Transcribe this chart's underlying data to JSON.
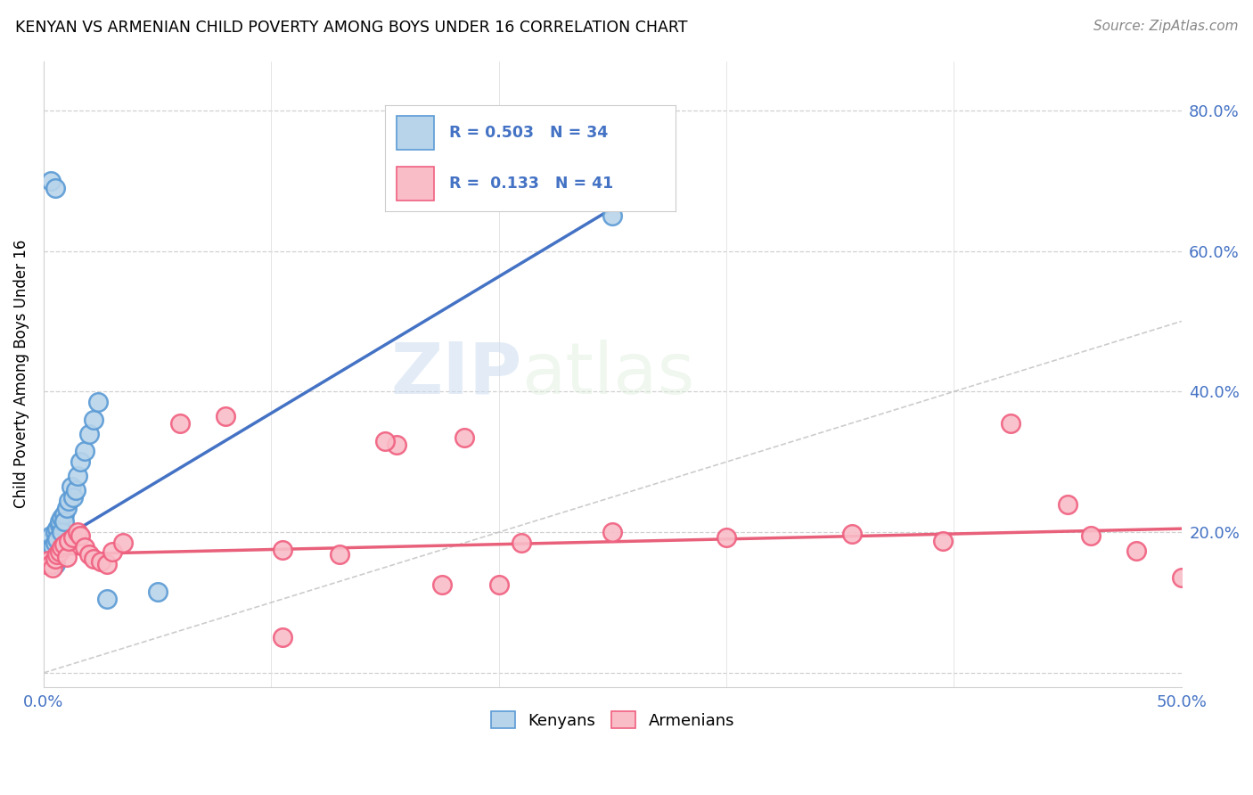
{
  "title": "KENYAN VS ARMENIAN CHILD POVERTY AMONG BOYS UNDER 16 CORRELATION CHART",
  "source": "Source: ZipAtlas.com",
  "ylabel": "Child Poverty Among Boys Under 16",
  "xlim": [
    0.0,
    0.5
  ],
  "ylim": [
    -0.02,
    0.87
  ],
  "yticks": [
    0.0,
    0.2,
    0.4,
    0.6,
    0.8
  ],
  "xticks": [
    0.0,
    0.1,
    0.2,
    0.3,
    0.4,
    0.5
  ],
  "legend_bottom": [
    "Kenyans",
    "Armenians"
  ],
  "kenyan_R": 0.503,
  "kenyan_N": 34,
  "armenian_R": 0.133,
  "armenian_N": 41,
  "kenyan_color": "#b8d4ea",
  "armenian_color": "#f9bdc8",
  "kenyan_edge": "#5b9bd5",
  "armenian_edge": "#f06080",
  "line_kenyan": "#4472c4",
  "line_armenian": "#e8607a",
  "watermark_zip": "ZIP",
  "watermark_atlas": "atlas",
  "kenyan_x": [
    0.001,
    0.002,
    0.002,
    0.003,
    0.003,
    0.004,
    0.004,
    0.005,
    0.005,
    0.005,
    0.006,
    0.006,
    0.007,
    0.007,
    0.008,
    0.008,
    0.009,
    0.009,
    0.01,
    0.011,
    0.012,
    0.013,
    0.014,
    0.015,
    0.016,
    0.018,
    0.02,
    0.022,
    0.024,
    0.028,
    0.003,
    0.005,
    0.25,
    0.05
  ],
  "kenyan_y": [
    0.175,
    0.185,
    0.165,
    0.195,
    0.17,
    0.18,
    0.16,
    0.2,
    0.185,
    0.155,
    0.205,
    0.19,
    0.21,
    0.215,
    0.22,
    0.2,
    0.225,
    0.215,
    0.235,
    0.245,
    0.265,
    0.25,
    0.26,
    0.28,
    0.3,
    0.315,
    0.34,
    0.36,
    0.385,
    0.105,
    0.7,
    0.69,
    0.65,
    0.115
  ],
  "armenian_x": [
    0.001,
    0.002,
    0.003,
    0.004,
    0.005,
    0.006,
    0.007,
    0.008,
    0.009,
    0.01,
    0.011,
    0.013,
    0.015,
    0.016,
    0.018,
    0.02,
    0.022,
    0.025,
    0.028,
    0.03,
    0.035,
    0.06,
    0.08,
    0.105,
    0.13,
    0.155,
    0.185,
    0.21,
    0.25,
    0.3,
    0.355,
    0.395,
    0.425,
    0.46,
    0.48,
    0.15,
    0.175,
    0.2,
    0.105,
    0.5,
    0.45
  ],
  "armenian_y": [
    0.155,
    0.16,
    0.155,
    0.15,
    0.162,
    0.168,
    0.172,
    0.178,
    0.182,
    0.165,
    0.188,
    0.192,
    0.2,
    0.195,
    0.178,
    0.168,
    0.162,
    0.158,
    0.155,
    0.172,
    0.185,
    0.355,
    0.365,
    0.175,
    0.168,
    0.325,
    0.335,
    0.185,
    0.2,
    0.192,
    0.198,
    0.188,
    0.355,
    0.195,
    0.173,
    0.33,
    0.125,
    0.125,
    0.05,
    0.135,
    0.24
  ]
}
